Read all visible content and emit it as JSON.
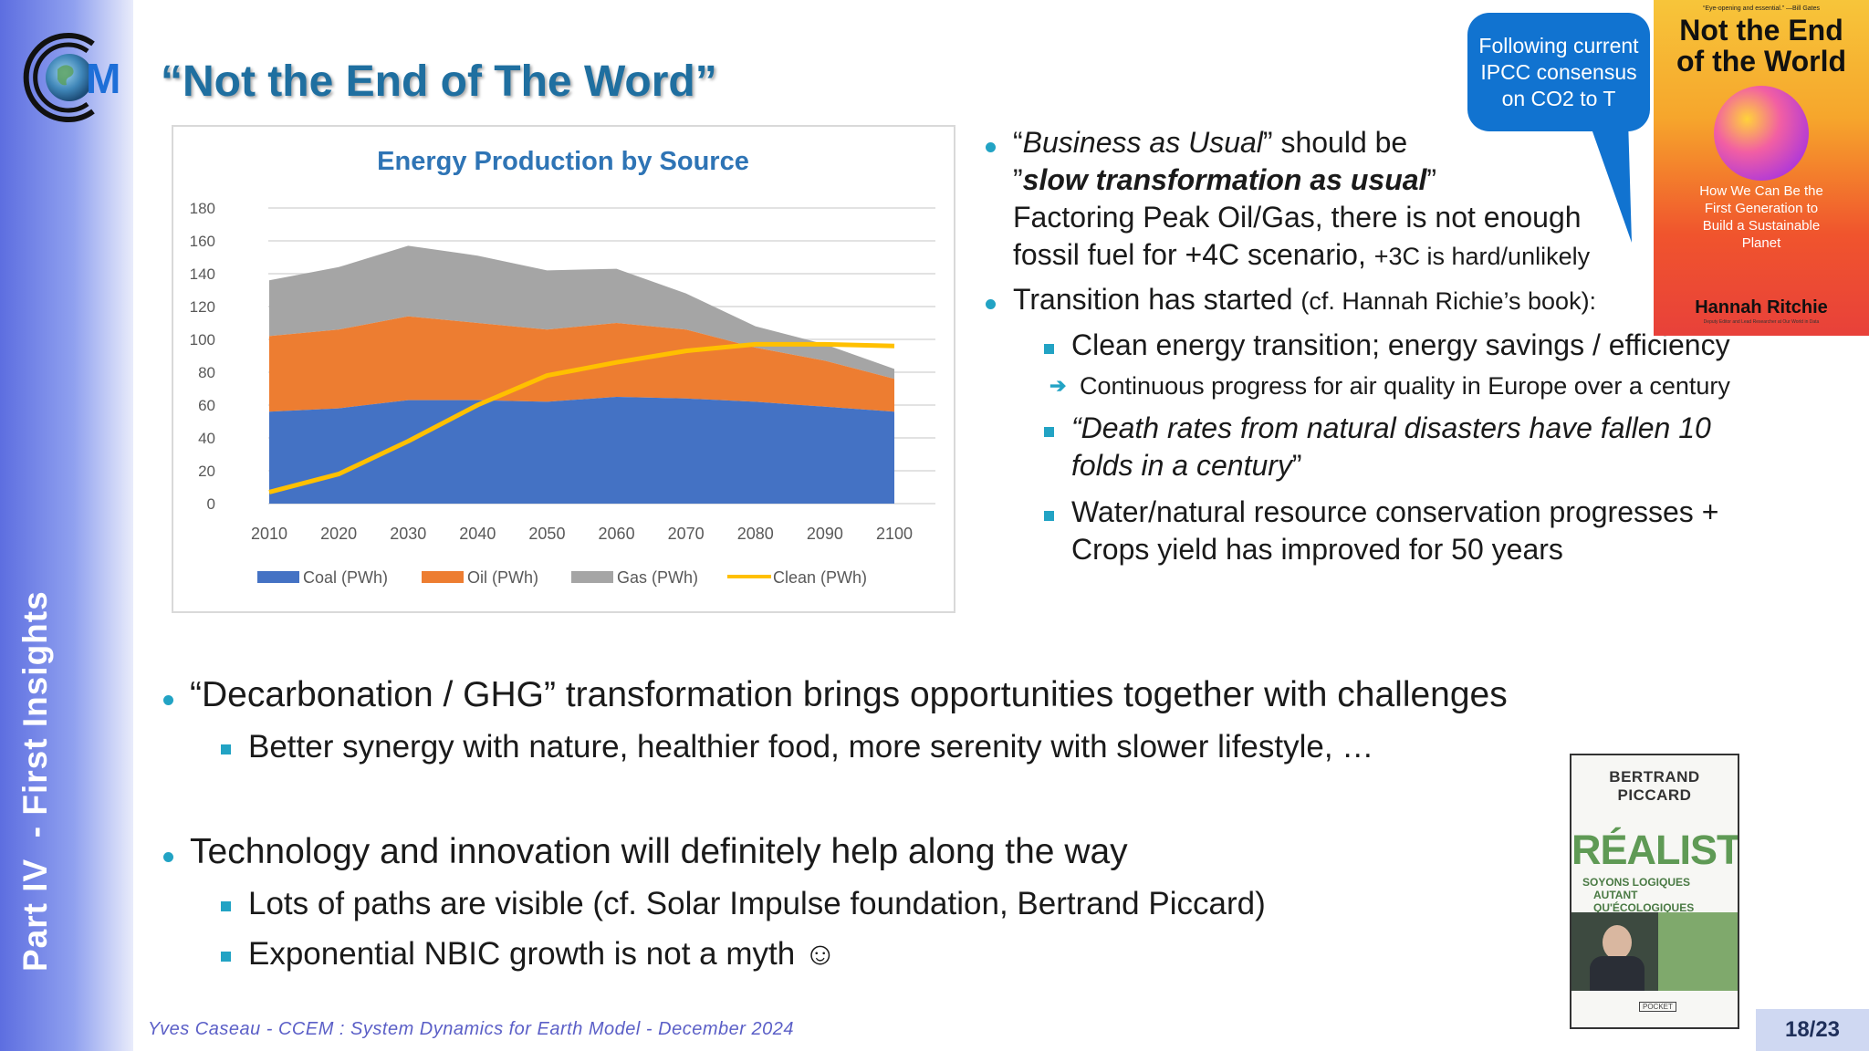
{
  "sidebar": {
    "vertical_label": "Part IV  - First Insights"
  },
  "logo": {
    "letter": "M"
  },
  "slide": {
    "title": "“Not the End of The Word”"
  },
  "chart_data": {
    "type": "area",
    "title": "Energy Production by Source",
    "categories": [
      "2010",
      "2020",
      "2030",
      "2040",
      "2050",
      "2060",
      "2070",
      "2080",
      "2090",
      "2100"
    ],
    "y_ticks": [
      "0",
      "20",
      "40",
      "60",
      "80",
      "100",
      "120",
      "140",
      "160",
      "180"
    ],
    "ylim": [
      0,
      180
    ],
    "grid": true,
    "legend_position": "bottom",
    "series": [
      {
        "name": "Coal (PWh)",
        "kind": "stacked-area",
        "color": "#4472c4",
        "values": [
          56,
          58,
          63,
          63,
          62,
          65,
          64,
          62,
          59,
          56
        ]
      },
      {
        "name": "Oil (PWh)",
        "kind": "stacked-area",
        "color": "#ed7d31",
        "values": [
          46,
          48,
          51,
          47,
          44,
          45,
          42,
          33,
          28,
          20
        ]
      },
      {
        "name": "Gas (PWh)",
        "kind": "stacked-area",
        "color": "#a5a5a5",
        "values": [
          34,
          38,
          43,
          41,
          36,
          33,
          22,
          13,
          10,
          6
        ]
      },
      {
        "name": "Clean (PWh)",
        "kind": "line",
        "color": "#ffc000",
        "values": [
          7,
          18,
          38,
          60,
          78,
          86,
          93,
          97,
          97,
          96
        ]
      }
    ]
  },
  "right_bullets": {
    "b1_line1_italic": "Business as Usual",
    "b1_line1_pre": "“",
    "b1_line1_post": "” should be",
    "b1_line2_pre": "”",
    "b1_line2_bold": "slow transformation as usual",
    "b1_line2_post": "”",
    "b1_line3": "Factoring Peak Oil/Gas, there is not enough",
    "b1_line4_main": "fossil fuel for +4C scenario, ",
    "b1_line4_small": "+3C is hard/unlikely",
    "b2_main": "Transition has started ",
    "b2_small": "(cf. Hannah Richie’s book):",
    "s1": "Clean energy transition; energy savings / efficiency",
    "arrow_item": "Continuous progress for air quality in Europe over a century",
    "s2_line1": "“Death rates from natural disasters have fallen 10",
    "s2_line2": "folds in a century",
    "s2_line2_post": "”",
    "s3_line1": "Water/natural resource conservation progresses +",
    "s3_line2": "Crops yield has improved for 50 years"
  },
  "main_bullets": {
    "b1": "“Decarbonation / GHG” transformation brings opportunities together with challenges",
    "b1_sub": "Better synergy with nature, healthier food, more serenity with slower lifestyle, …",
    "b2": "Technology and innovation will definitely help along the way",
    "b2_sub1": "Lots of paths are visible (cf. Solar Impulse foundation,  Bertrand Piccard)",
    "b2_sub2": "Exponential NBIC growth is not a myth ☺"
  },
  "callout": {
    "text": "Following current IPCC consensus on CO2 to T"
  },
  "book1": {
    "quote": "“Eye-opening and essential.” —Bill Gates",
    "title_line1": "Not the End",
    "title_line2": "of the World",
    "subtitle": "How We Can Be the First Generation to Build a Sustainable Planet",
    "author": "Hannah Ritchie",
    "author_note": "Deputy Editor and Lead Researcher at Our World in Data"
  },
  "book2": {
    "author": "BERTRAND PICCARD",
    "title": "RÉALISTE",
    "subtitle_line1": "SOYONS LOGIQUES",
    "subtitle_line2": "AUTANT QU'ÉCOLOGIQUES",
    "publisher": "POCKET"
  },
  "footer": {
    "text": "Yves Caseau  - CCEM : System Dynamics for Earth Model - December 2024",
    "page": "18/23"
  }
}
